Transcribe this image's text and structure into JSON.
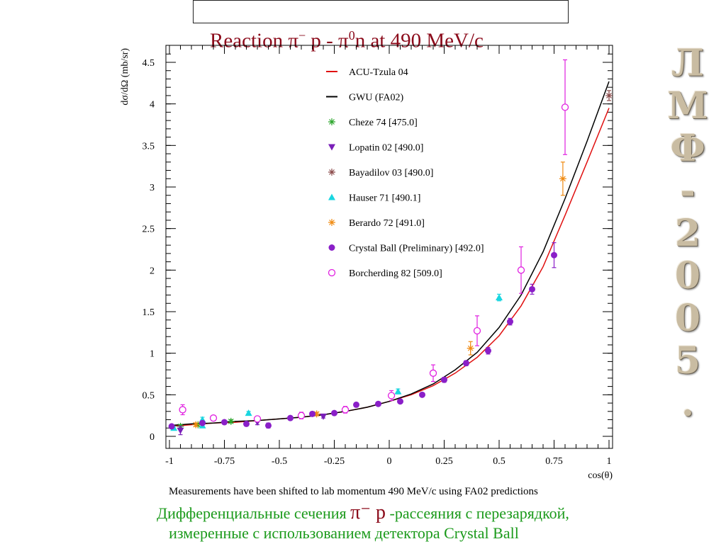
{
  "title_prefix": "Reaction  π",
  "title_sup1": "−",
  "title_mid": " p -  π",
  "title_sup2": "0",
  "title_suffix": "n at 490 MeV/c",
  "side_label": [
    "Л",
    "М",
    "Ф",
    "-",
    "2",
    "0",
    "0",
    "5",
    "."
  ],
  "footnote": "Measurements have been shifted to lab momentum 490 MeV/c using FA02 predictions",
  "caption": {
    "line1_pre": "Дифференциальные сечения ",
    "line1_pi": "π⁻ p",
    "line1_post": " -рассеяния с перезарядкой,",
    "line2": "измеренные с использованием детектора Crystal Ball"
  },
  "colors": {
    "title": "#8b0a1a",
    "caption": "#1b9a1b",
    "acu": "#e01010",
    "gwu": "#000000",
    "cheze": "#2aa52a",
    "lopatin": "#7a1fb8",
    "bayadilov": "#8b4a4a",
    "hauser": "#19d6e0",
    "berardo": "#f08a10",
    "crystal": "#8a1fc8",
    "borcherding": "#e020e0"
  },
  "chart_data": {
    "type": "scatter",
    "xlabel": "cos(θ)",
    "ylabel": "dσ/dΩ (mb/sr)",
    "xlim": [
      -1,
      1
    ],
    "ylim": [
      0,
      4.7
    ],
    "xticks": [
      {
        "v": -1,
        "label": "-1"
      },
      {
        "v": -0.75,
        "label": "-0.75"
      },
      {
        "v": -0.5,
        "label": "-0.5"
      },
      {
        "v": -0.25,
        "label": "-0.25"
      },
      {
        "v": 0,
        "label": "0"
      },
      {
        "v": 0.25,
        "label": "0.25"
      },
      {
        "v": 0.5,
        "label": "0.5"
      },
      {
        "v": 0.75,
        "label": "0.75"
      },
      {
        "v": 1,
        "label": "1"
      }
    ],
    "yticks": [
      {
        "v": 0,
        "label": "0"
      },
      {
        "v": 0.5,
        "label": "0.5"
      },
      {
        "v": 1,
        "label": "1"
      },
      {
        "v": 1.5,
        "label": "1.5"
      },
      {
        "v": 2,
        "label": "2"
      },
      {
        "v": 2.5,
        "label": "2.5"
      },
      {
        "v": 3,
        "label": "3"
      },
      {
        "v": 3.5,
        "label": "3.5"
      },
      {
        "v": 4,
        "label": "4"
      },
      {
        "v": 4.5,
        "label": "4.5"
      }
    ],
    "legend_position": "top-center",
    "curves": [
      {
        "name": "ACU-Tzula 04",
        "color_key": "acu",
        "points": [
          [
            -1,
            0.12
          ],
          [
            -0.9,
            0.14
          ],
          [
            -0.8,
            0.16
          ],
          [
            -0.7,
            0.17
          ],
          [
            -0.6,
            0.19
          ],
          [
            -0.5,
            0.21
          ],
          [
            -0.4,
            0.23
          ],
          [
            -0.3,
            0.26
          ],
          [
            -0.2,
            0.3
          ],
          [
            -0.1,
            0.35
          ],
          [
            0,
            0.42
          ],
          [
            0.1,
            0.5
          ],
          [
            0.2,
            0.61
          ],
          [
            0.3,
            0.76
          ],
          [
            0.4,
            0.95
          ],
          [
            0.5,
            1.21
          ],
          [
            0.6,
            1.57
          ],
          [
            0.7,
            2.04
          ],
          [
            0.8,
            2.66
          ],
          [
            0.9,
            3.3
          ],
          [
            1,
            3.95
          ]
        ]
      },
      {
        "name": "GWU (FA02)",
        "color_key": "gwu",
        "points": [
          [
            -1,
            0.13
          ],
          [
            -0.9,
            0.15
          ],
          [
            -0.8,
            0.16
          ],
          [
            -0.7,
            0.18
          ],
          [
            -0.6,
            0.19
          ],
          [
            -0.5,
            0.21
          ],
          [
            -0.4,
            0.23
          ],
          [
            -0.3,
            0.26
          ],
          [
            -0.2,
            0.3
          ],
          [
            -0.1,
            0.35
          ],
          [
            0,
            0.42
          ],
          [
            0.1,
            0.51
          ],
          [
            0.2,
            0.63
          ],
          [
            0.3,
            0.8
          ],
          [
            0.4,
            1.01
          ],
          [
            0.5,
            1.31
          ],
          [
            0.6,
            1.7
          ],
          [
            0.7,
            2.22
          ],
          [
            0.8,
            2.86
          ],
          [
            0.9,
            3.55
          ],
          [
            1,
            4.27
          ]
        ]
      }
    ],
    "series": [
      {
        "name": "Cheze 74  [475.0]",
        "marker": "star",
        "color_key": "cheze",
        "points": [
          [
            -0.95,
            0.12,
            0.02
          ],
          [
            -0.87,
            0.14,
            0.02
          ],
          [
            -0.72,
            0.18,
            0.02
          ]
        ]
      },
      {
        "name": "Lopatin 02  [490.0]",
        "marker": "triangle-down",
        "color_key": "lopatin",
        "points": [
          [
            -0.95,
            0.07,
            0.05
          ],
          [
            -0.6,
            0.17,
            0.03
          ],
          [
            -0.3,
            0.24,
            0.02
          ]
        ]
      },
      {
        "name": "Bayadilov 03  [490.0]",
        "marker": "star",
        "color_key": "bayadilov",
        "points": [
          [
            1.0,
            4.1,
            0.06
          ]
        ]
      },
      {
        "name": "Hauser 71  [490.1]",
        "marker": "triangle-up",
        "color_key": "hauser",
        "points": [
          [
            -0.98,
            0.1,
            0.02
          ],
          [
            -0.85,
            0.2,
            0.03
          ],
          [
            -0.85,
            0.13,
            0.02
          ],
          [
            -0.64,
            0.28,
            0.02
          ],
          [
            0.04,
            0.54,
            0.03
          ],
          [
            0.5,
            1.67,
            0.04
          ]
        ]
      },
      {
        "name": "Berardo 72  [491.0]",
        "marker": "star",
        "color_key": "berardo",
        "points": [
          [
            -0.88,
            0.14,
            0.02
          ],
          [
            -0.33,
            0.27,
            0.02
          ],
          [
            0.37,
            1.06,
            0.08
          ],
          [
            0.79,
            3.1,
            0.2
          ]
        ]
      },
      {
        "name": "Crystal Ball (Preliminary)  [492.0]",
        "marker": "circle-filled",
        "color_key": "crystal",
        "points": [
          [
            -0.99,
            0.12,
            0.02
          ],
          [
            -0.85,
            0.16,
            0.02
          ],
          [
            -0.75,
            0.17,
            0.02
          ],
          [
            -0.65,
            0.15,
            0.02
          ],
          [
            -0.55,
            0.13,
            0.03
          ],
          [
            -0.45,
            0.22,
            0.02
          ],
          [
            -0.35,
            0.27,
            0.02
          ],
          [
            -0.25,
            0.28,
            0.02
          ],
          [
            -0.15,
            0.38,
            0.02
          ],
          [
            -0.05,
            0.39,
            0.02
          ],
          [
            0.05,
            0.42,
            0.02
          ],
          [
            0.15,
            0.5,
            0.02
          ],
          [
            0.25,
            0.68,
            0.03
          ],
          [
            0.35,
            0.88,
            0.03
          ],
          [
            0.45,
            1.03,
            0.04
          ],
          [
            0.55,
            1.38,
            0.04
          ],
          [
            0.65,
            1.77,
            0.06
          ],
          [
            0.75,
            2.18,
            0.15
          ]
        ]
      },
      {
        "name": "Borcherding 82  [509.0]",
        "marker": "circle-open",
        "color_key": "borcherding",
        "points": [
          [
            -0.94,
            0.32,
            0.06
          ],
          [
            -0.8,
            0.22,
            0.03
          ],
          [
            -0.6,
            0.21,
            0.03
          ],
          [
            -0.4,
            0.25,
            0.04
          ],
          [
            -0.2,
            0.32,
            0.04
          ],
          [
            0.01,
            0.49,
            0.06
          ],
          [
            0.2,
            0.76,
            0.1
          ],
          [
            0.4,
            1.27,
            0.18
          ],
          [
            0.6,
            2.0,
            0.28
          ],
          [
            0.8,
            3.96,
            0.57
          ]
        ]
      }
    ]
  }
}
